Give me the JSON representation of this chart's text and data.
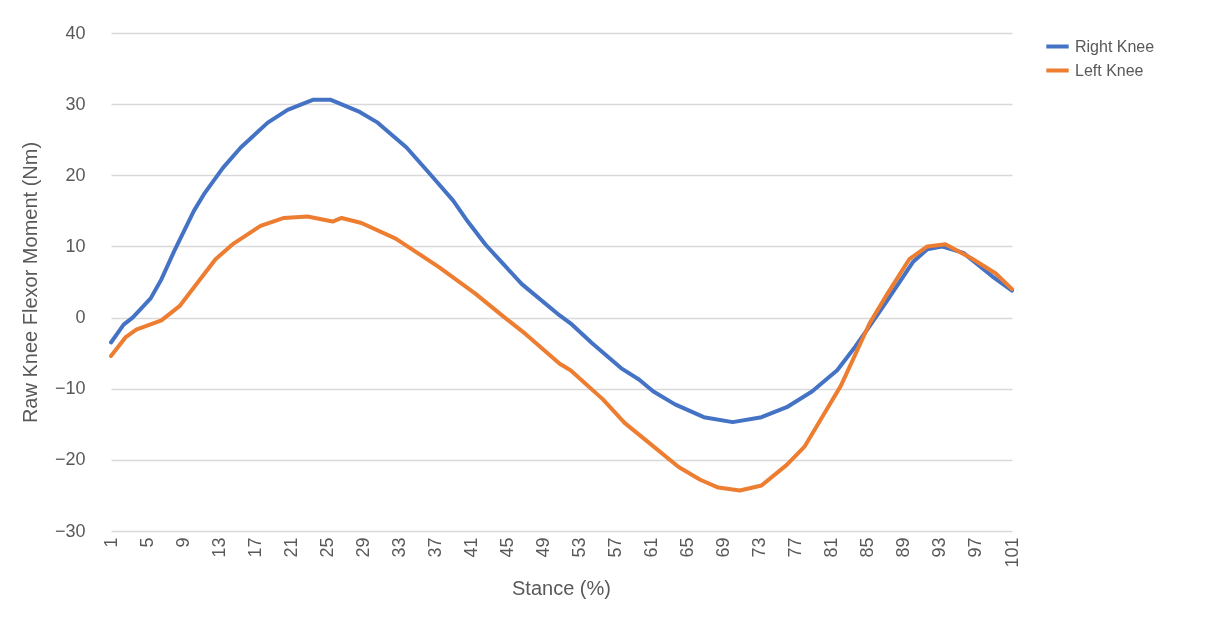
{
  "chart_data": {
    "type": "line",
    "xlabel": "Stance (%)",
    "ylabel": "Raw Knee Flexor Moment (Nm)",
    "xlim": [
      1,
      101
    ],
    "xticks": [
      1,
      5,
      9,
      13,
      17,
      21,
      25,
      29,
      33,
      37,
      41,
      45,
      49,
      53,
      57,
      61,
      65,
      69,
      73,
      77,
      81,
      85,
      89,
      93,
      97,
      101
    ],
    "ylim": [
      -30,
      40
    ],
    "yticks": [
      -30,
      -20,
      -10,
      0,
      10,
      20,
      30,
      40
    ],
    "grid": "y",
    "legend": "right",
    "line_style": "solid",
    "marker": "none",
    "series": [
      {
        "name": "Right Knee",
        "color": "#4472c4",
        "x": [
          1,
          2.4,
          3.4,
          5.4,
          6.6,
          8,
          10.2,
          11.4,
          13.4,
          15.4,
          18.4,
          20.6,
          23.4,
          25.4,
          28.6,
          30.6,
          33.8,
          36.6,
          39,
          40.6,
          42.6,
          46.6,
          50.8,
          52,
          54.4,
          57.6,
          59.6,
          61.2,
          63.6,
          66.8,
          70,
          73.2,
          76,
          78.8,
          81.6,
          83.6,
          85.2,
          87.2,
          90,
          91.6,
          93.2,
          95.6,
          98.8,
          101
        ],
        "values": [
          -3.5,
          -1,
          0,
          2.7,
          5.4,
          9.3,
          15,
          17.5,
          21,
          23.9,
          27.4,
          29.2,
          30.6,
          30.6,
          28.9,
          27.4,
          23.9,
          19.9,
          16.4,
          13.5,
          10.2,
          4.7,
          0.3,
          -0.8,
          -3.6,
          -7.1,
          -8.7,
          -10.4,
          -12.2,
          -14,
          -14.7,
          -14,
          -12.6,
          -10.4,
          -7.4,
          -4.1,
          -1.2,
          2.5,
          7.8,
          9.6,
          10,
          9.1,
          5.8,
          3.8
        ]
      },
      {
        "name": "Left Knee",
        "color": "#ed7d31",
        "x": [
          1,
          2.6,
          3.8,
          6.6,
          8.6,
          10.6,
          12.6,
          14.6,
          17.6,
          20.2,
          22.8,
          25.6,
          26.6,
          28.8,
          32.6,
          37.4,
          41.4,
          44.6,
          47,
          50.8,
          52,
          55.6,
          58,
          61.2,
          64,
          66.4,
          68.4,
          70.8,
          73.2,
          76,
          78,
          80.4,
          82,
          83.6,
          85.2,
          87.2,
          89.6,
          91.6,
          93.6,
          96.4,
          99.2,
          101
        ],
        "values": [
          -5.4,
          -2.8,
          -1.7,
          -0.4,
          1.6,
          4.9,
          8.2,
          10.4,
          12.9,
          14,
          14.2,
          13.5,
          14,
          13.3,
          11.1,
          7.1,
          3.4,
          0.1,
          -2.3,
          -6.5,
          -7.4,
          -11.5,
          -14.8,
          -18.1,
          -21,
          -22.8,
          -23.9,
          -24.3,
          -23.6,
          -20.7,
          -18.1,
          -13,
          -9.6,
          -5.2,
          -0.8,
          3.4,
          8.2,
          10,
          10.3,
          8.4,
          6.2,
          4
        ]
      }
    ]
  }
}
